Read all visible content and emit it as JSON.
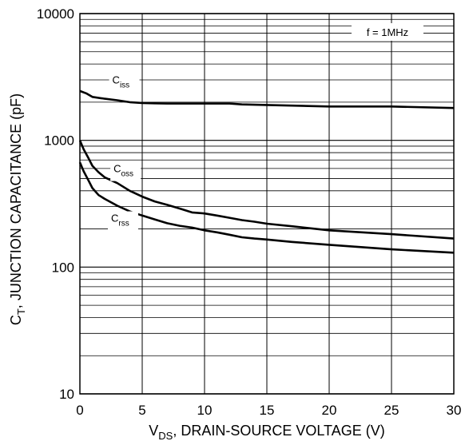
{
  "chart_data": {
    "type": "line",
    "title": "",
    "xlabel": {
      "main": "V",
      "sub": "DS",
      "rest": ", DRAIN-SOURCE VOLTAGE (V)"
    },
    "ylabel": {
      "main": "C",
      "sub": "T",
      "rest": ", JUNCTION CAPACITANCE (pF)"
    },
    "xlim": [
      0,
      30
    ],
    "ylim": [
      10,
      10000
    ],
    "yscale": "log",
    "grid": true,
    "x_ticks": [
      "0",
      "5",
      "10",
      "15",
      "20",
      "25",
      "30"
    ],
    "y_ticks": [
      "10",
      "100",
      "1000",
      "10000"
    ],
    "annotation": "f = 1MHz",
    "series": [
      {
        "name": {
          "main": "C",
          "sub": "iss"
        },
        "x": [
          0,
          0.5,
          1,
          2,
          3,
          4,
          5,
          6,
          7,
          8,
          10,
          12,
          13,
          15,
          20,
          25,
          30
        ],
        "y": [
          2450,
          2350,
          2200,
          2130,
          2070,
          2000,
          1970,
          1960,
          1950,
          1950,
          1950,
          1950,
          1920,
          1900,
          1850,
          1850,
          1800
        ]
      },
      {
        "name": {
          "main": "C",
          "sub": "oss"
        },
        "x": [
          0,
          0.3,
          0.7,
          1,
          1.5,
          2,
          3,
          4,
          5,
          6,
          7,
          8,
          9,
          10,
          11,
          12,
          13,
          14,
          15,
          17,
          20,
          25,
          30
        ],
        "y": [
          1000,
          850,
          720,
          630,
          560,
          510,
          460,
          400,
          360,
          330,
          310,
          290,
          270,
          265,
          255,
          245,
          235,
          228,
          220,
          210,
          195,
          182,
          168
        ]
      },
      {
        "name": {
          "main": "C",
          "sub": "rss"
        },
        "x": [
          0,
          0.3,
          0.7,
          1,
          1.5,
          2,
          3,
          4,
          5,
          6,
          7,
          8,
          9,
          10,
          11,
          12,
          13,
          14,
          15,
          17,
          20,
          25,
          30
        ],
        "y": [
          670,
          570,
          480,
          420,
          370,
          345,
          305,
          275,
          255,
          238,
          222,
          212,
          205,
          195,
          188,
          180,
          172,
          168,
          165,
          158,
          150,
          138,
          130
        ]
      }
    ]
  }
}
